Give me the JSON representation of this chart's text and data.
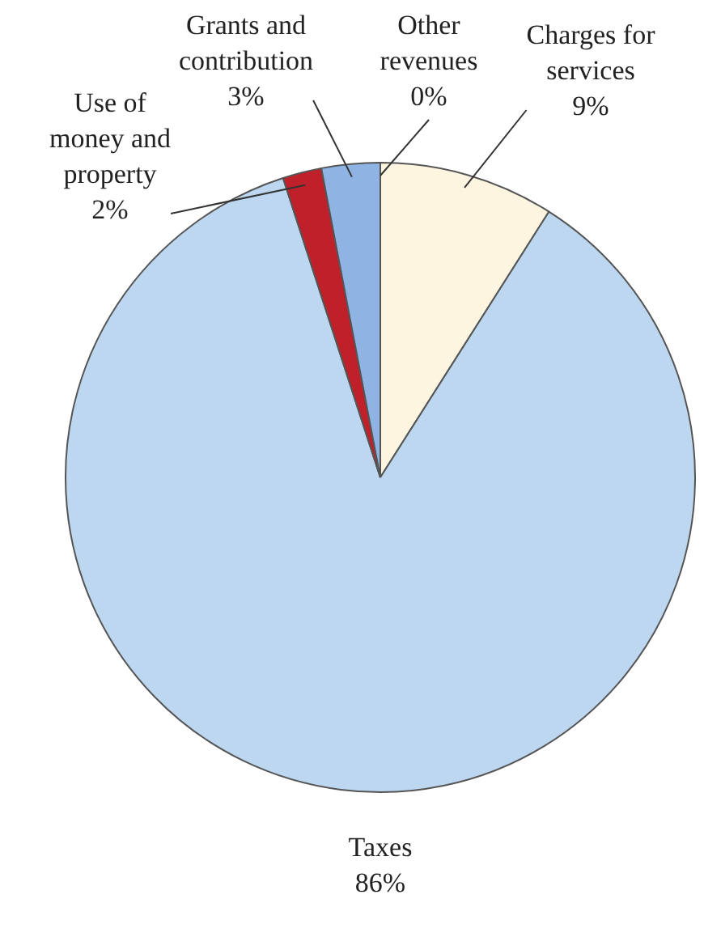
{
  "chart_data": {
    "type": "pie",
    "categories": [
      "Charges for services",
      "Taxes",
      "Use of money and property",
      "Grants and contribution",
      "Other revenues"
    ],
    "values": [
      9,
      86,
      2,
      3,
      0
    ],
    "value_labels": [
      "9%",
      "86%",
      "2%",
      "3%",
      "0%"
    ],
    "colors": [
      "#fdf5e0",
      "#bdd7f0",
      "#c0202a",
      "#8fb4e3",
      "#6a3d8f"
    ],
    "legend": false
  }
}
